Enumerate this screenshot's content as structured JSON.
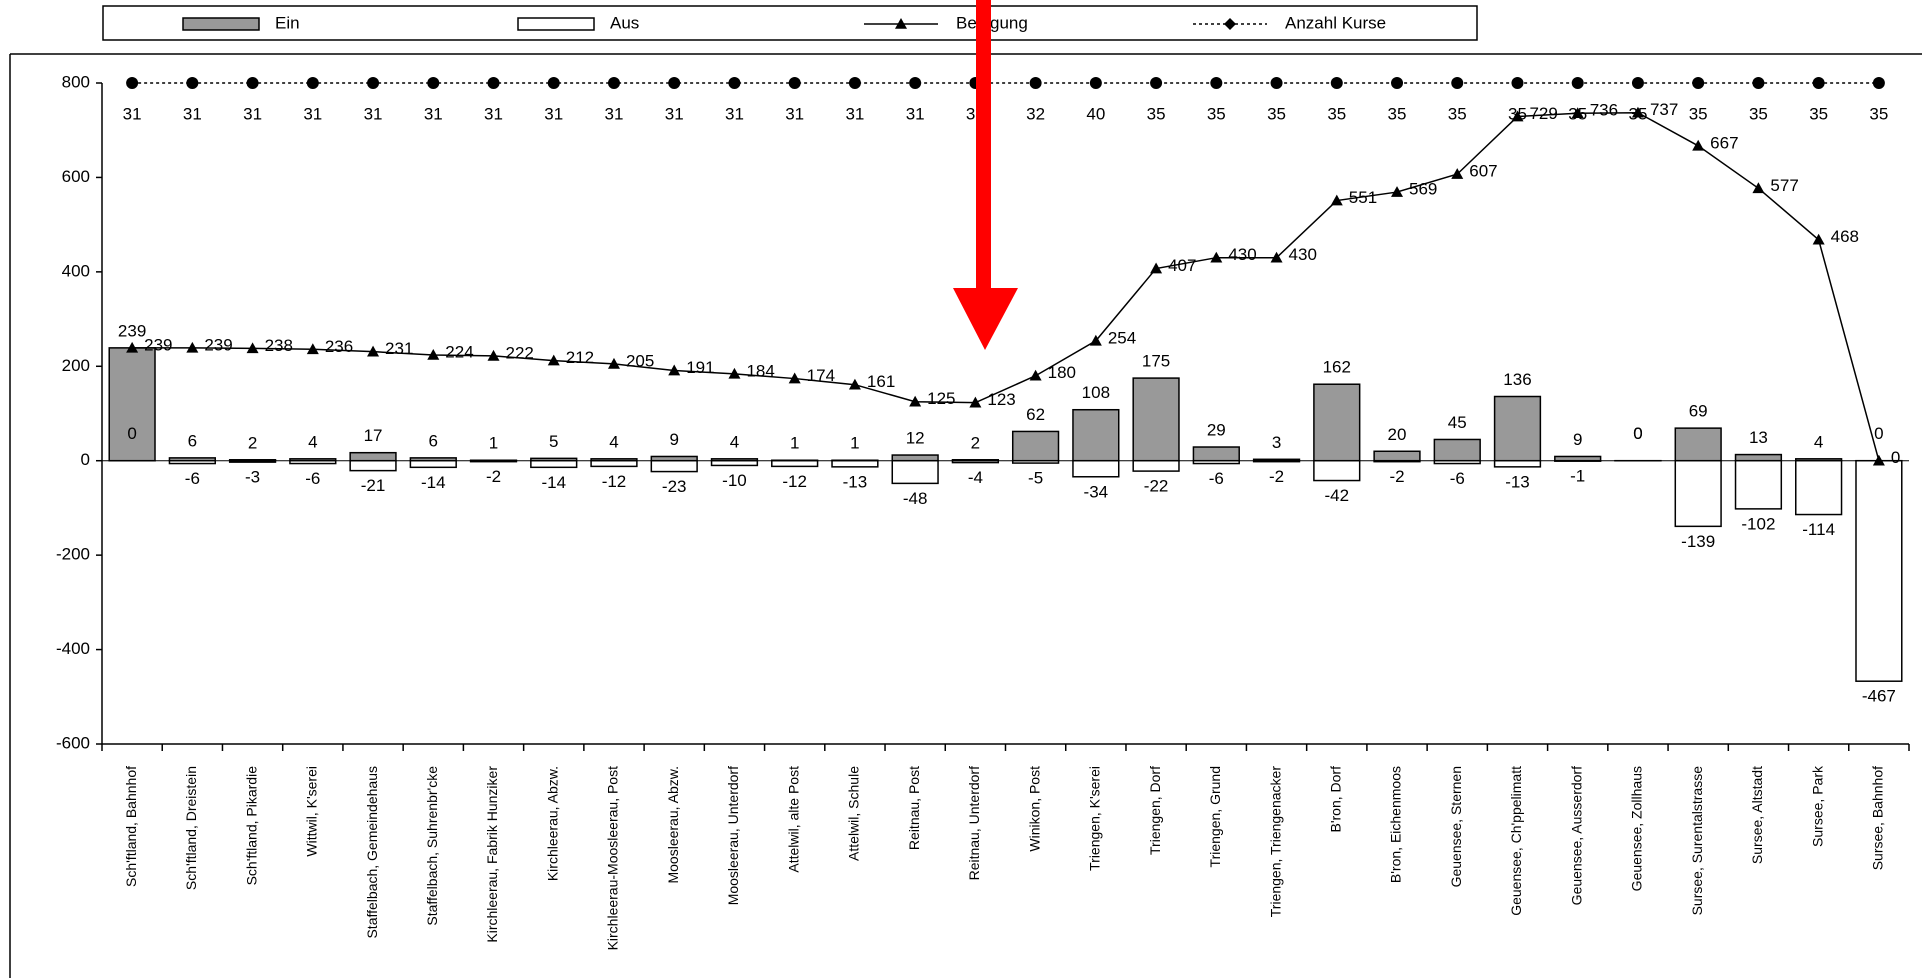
{
  "chart_data": {
    "type": "bar",
    "categories": [
      "Sch'ftland, Bahnhof",
      "Sch'ftland, Dreistein",
      "Sch'ftland, Pikardie",
      "Wittwil, K'serei",
      "Staffelbach, Gemeindehaus",
      "Staffelbach, Suhrenbr'cke",
      "Kirchleerau, Fabrik Hunziker",
      "Kirchleerau, Abzw.",
      "Kirchleerau-Moosleerau, Post",
      "Moosleerau, Abzw.",
      "Moosleerau, Unterdorf",
      "Attelwil, alte Post",
      "Attelwil, Schule",
      "Reitnau, Post",
      "Reitnau, Unterdorf",
      "Winikon, Post",
      "Triengen, K'serei",
      "Triengen, Dorf",
      "Triengen, Grund",
      "Triengen, Triengenacker",
      "B'ron, Dorf",
      "B'ron, Eichenmoos",
      "Geuensee, Sternen",
      "Geuensee, Ch'ppelimatt",
      "Geuensee, Ausserdorf",
      "Geuensee, Zollhaus",
      "Sursee, Surentalstrasse",
      "Sursee, Altstadt",
      "Sursee, Park",
      "Sursee, Bahnhof"
    ],
    "series": [
      {
        "name": "Ein",
        "type": "bar",
        "color": "#999999",
        "values": [
          239,
          6,
          2,
          4,
          17,
          6,
          1,
          5,
          4,
          9,
          4,
          1,
          1,
          12,
          2,
          62,
          108,
          175,
          29,
          3,
          162,
          20,
          45,
          136,
          9,
          0,
          69,
          13,
          4,
          0
        ]
      },
      {
        "name": "Aus",
        "type": "bar",
        "color": "#ffffff",
        "values": [
          0,
          -6,
          -3,
          -6,
          -21,
          -14,
          -2,
          -14,
          -12,
          -23,
          -10,
          -12,
          -13,
          -48,
          -4,
          -5,
          -34,
          -22,
          -6,
          -2,
          -42,
          -2,
          -6,
          -13,
          -1,
          0,
          -139,
          -102,
          -114,
          -467
        ]
      },
      {
        "name": "Belegung",
        "type": "line",
        "color": "#000000",
        "values": [
          239,
          239,
          238,
          236,
          231,
          224,
          222,
          212,
          205,
          191,
          184,
          174,
          161,
          125,
          123,
          180,
          254,
          407,
          430,
          430,
          551,
          569,
          607,
          729,
          736,
          737,
          667,
          577,
          468,
          0
        ]
      },
      {
        "name": "Anzahl Kurse",
        "type": "strip",
        "color": "#000000",
        "values": [
          31,
          31,
          31,
          31,
          31,
          31,
          31,
          31,
          31,
          31,
          31,
          31,
          31,
          31,
          31,
          32,
          40,
          35,
          35,
          35,
          35,
          35,
          35,
          35,
          35,
          35,
          35,
          35,
          35,
          35
        ]
      }
    ],
    "ylim": [
      -600,
      800
    ],
    "yticks": [
      -600,
      -400,
      -200,
      0,
      200,
      400,
      600,
      800
    ],
    "grid": false,
    "legend": "top"
  }
}
